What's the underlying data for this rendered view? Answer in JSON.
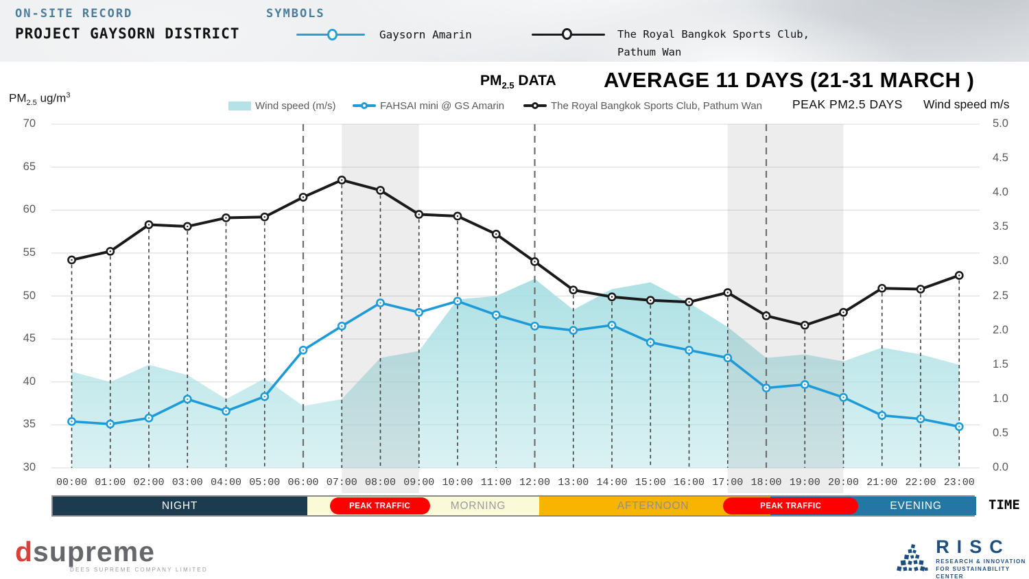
{
  "header": {
    "onsite_label": "ON-SITE RECORD",
    "project_title": "PROJECT GAYSORN DISTRICT",
    "symbols_label": "SYMBOLS",
    "symbol_items": [
      {
        "label": "Gaysorn Amarin",
        "color": "#2B9CD8"
      },
      {
        "label": "The Royal Bangkok Sports Club,",
        "label2": "Pathum Wan",
        "color": "#1A1A1A"
      }
    ]
  },
  "chart": {
    "pm_title": {
      "prefix": "PM",
      "sub": "2.5",
      "suffix": " DATA"
    },
    "main_title": "AVERAGE 11 DAYS (21-31 MARCH )",
    "left_axis_title": {
      "prefix": "PM",
      "sub": "2.5",
      "unit": " ug/m",
      "sup": "3"
    },
    "right_axis_title": "Wind speed m/s",
    "peak_days_label": "PEAK PM2.5 DAYS",
    "legend": [
      {
        "label": "Wind speed (m/s)",
        "swatch": "area",
        "color": "#B5E2E6"
      },
      {
        "label": "FAHSAI mini @ GS Amarin",
        "swatch": "line-marker",
        "color": "#1E9BD7"
      },
      {
        "label": "The Royal Bangkok Sports Club, Pathum Wan",
        "swatch": "line-marker",
        "color": "#1A1A1A"
      }
    ]
  },
  "chart_data": {
    "type": "line",
    "x": [
      "00:00",
      "01:00",
      "02:00",
      "03:00",
      "04:00",
      "05:00",
      "06:00",
      "07:00",
      "08:00",
      "09:00",
      "10:00",
      "11:00",
      "12:00",
      "13:00",
      "14:00",
      "15:00",
      "16:00",
      "17:00",
      "18:00",
      "19:00",
      "20:00",
      "21:00",
      "22:00",
      "23:00"
    ],
    "series": [
      {
        "name": "Wind speed (m/s)",
        "type": "area",
        "axis": "right",
        "color": "#A9DFE3",
        "values": [
          1.4,
          1.25,
          1.5,
          1.35,
          1.0,
          1.3,
          0.9,
          1.0,
          1.6,
          1.7,
          2.45,
          2.5,
          2.75,
          2.3,
          2.6,
          2.7,
          2.4,
          2.05,
          1.6,
          1.65,
          1.55,
          1.75,
          1.65,
          1.5
        ]
      },
      {
        "name": "FAHSAI mini @ GS Amarin",
        "type": "line",
        "axis": "left",
        "color": "#1E9BD7",
        "values": [
          35.4,
          35.1,
          35.8,
          38.0,
          36.6,
          38.3,
          43.7,
          46.5,
          49.2,
          48.1,
          49.4,
          47.8,
          46.5,
          46.0,
          46.6,
          44.6,
          43.7,
          42.8,
          39.3,
          39.7,
          38.2,
          36.1,
          35.7,
          34.8
        ]
      },
      {
        "name": "The Royal Bangkok Sports Club, Pathum Wan",
        "type": "line",
        "axis": "left",
        "color": "#1A1A1A",
        "values": [
          54.2,
          55.2,
          58.3,
          58.1,
          59.1,
          59.2,
          61.5,
          63.5,
          62.3,
          59.5,
          59.3,
          57.2,
          54.0,
          50.7,
          49.9,
          49.5,
          49.3,
          50.4,
          47.7,
          46.6,
          48.1,
          50.9,
          50.8,
          52.4
        ]
      }
    ],
    "left_axis": {
      "title": "PM2.5 ug/m3",
      "min": 30,
      "max": 70,
      "ticks": [
        "70",
        "65",
        "60",
        "55",
        "50",
        "45",
        "40",
        "35",
        "30"
      ]
    },
    "right_axis": {
      "title": "Wind speed m/s",
      "min": 0,
      "max": 5,
      "ticks": [
        "5.0",
        "4.5",
        "4.0",
        "3.5",
        "3.0",
        "2.5",
        "2.0",
        "1.5",
        "1.0",
        "0.5",
        "0.0"
      ]
    },
    "shaded_peak_bands": [
      {
        "from_hour": 7,
        "to_hour": 9
      },
      {
        "from_hour": 17,
        "to_hour": 20
      }
    ],
    "period_boundary_hours": [
      6,
      12,
      18
    ],
    "grid": "horizontal",
    "legend_position": "top"
  },
  "timeline": {
    "segments": [
      {
        "label": "NIGHT",
        "from_hour": 0,
        "to_hour": 6,
        "bg": "#1C3B4E",
        "text_color": "#FFFFFF",
        "label_center": 185
      },
      {
        "label": "MORNING",
        "from_hour": 6,
        "to_hour": 12,
        "bg": "#FAFAD8",
        "text_color": "#9A9A9A",
        "label_center": 620
      },
      {
        "label": "AFTERNOON",
        "from_hour": 12,
        "to_hour": 18,
        "bg": "#F9B301",
        "text_color": "#8F8F8F",
        "label_center": 875
      },
      {
        "label": "EVENING",
        "from_hour": 18,
        "to_hour": 23.5,
        "bg": "#2377A3",
        "text_color": "#FFFFFF",
        "label_center": 1258
      }
    ],
    "peak_pills": [
      {
        "label": "PEAK TRAFFIC",
        "from_hour": 6.65,
        "to_hour": 9.25
      },
      {
        "label": "PEAK TRAFFIC",
        "from_hour": 16.85,
        "to_hour": 20.35
      }
    ],
    "axis_label": "TIME"
  },
  "footer": {
    "dsupreme": {
      "d": "d",
      "rest": "supreme",
      "tagline": "DEES SUPREME COMPANY LIMITED"
    },
    "risc": {
      "name": "RISC",
      "tag_line1": "RESEARCH & INNOVATION",
      "tag_line2": "FOR SUSTAINABILITY CENTER"
    }
  }
}
